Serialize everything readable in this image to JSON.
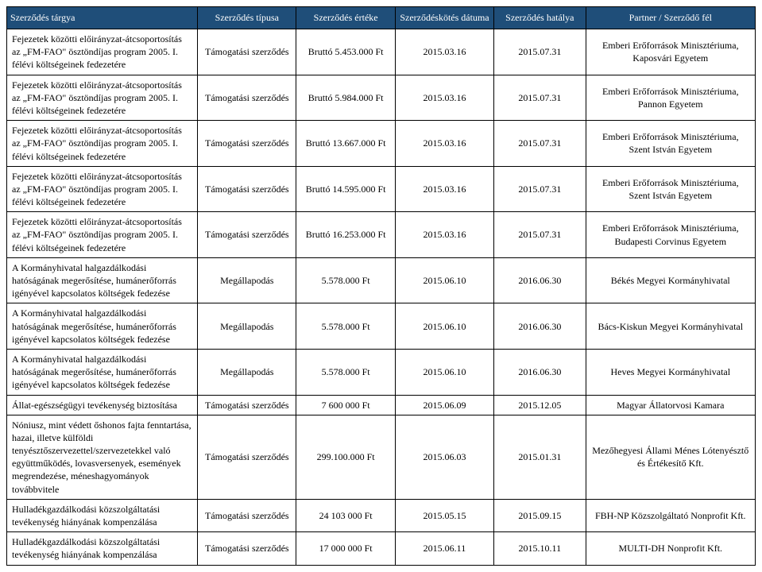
{
  "table": {
    "headers": {
      "subject": "Szerződés tárgya",
      "type": "Szerződés típusa",
      "value": "Szerződés értéke",
      "date": "Szerződéskötés dátuma",
      "expiry": "Szerződés hatálya",
      "partner": "Partner / Szerződő fél"
    },
    "rows": [
      {
        "subject": "Fejezetek közötti előirányzat-átcsoportosítás az „FM-FAO\" ösztöndíjas program 2005. I. félévi költségeinek fedezetére",
        "type": "Támogatási szerződés",
        "value": "Bruttó 5.453.000 Ft",
        "date": "2015.03.16",
        "expiry": "2015.07.31",
        "partner": "Emberi Erőforrások Minisztériuma, Kaposvári Egyetem"
      },
      {
        "subject": "Fejezetek közötti előirányzat-átcsoportosítás az „FM-FAO\" ösztöndíjas program 2005. I. félévi költségeinek fedezetére",
        "type": "Támogatási szerződés",
        "value": "Bruttó 5.984.000 Ft",
        "date": "2015.03.16",
        "expiry": "2015.07.31",
        "partner": "Emberi Erőforrások Minisztériuma, Pannon Egyetem"
      },
      {
        "subject": "Fejezetek közötti előirányzat-átcsoportosítás az „FM-FAO\" ösztöndíjas program 2005. I. félévi költségeinek fedezetére",
        "type": "Támogatási szerződés",
        "value": "Bruttó 13.667.000 Ft",
        "date": "2015.03.16",
        "expiry": "2015.07.31",
        "partner": "Emberi Erőforrások Minisztériuma, Szent István Egyetem"
      },
      {
        "subject": "Fejezetek közötti előirányzat-átcsoportosítás az „FM-FAO\" ösztöndíjas program 2005. I. félévi költségeinek fedezetére",
        "type": "Támogatási szerződés",
        "value": "Bruttó 14.595.000 Ft",
        "date": "2015.03.16",
        "expiry": "2015.07.31",
        "partner": "Emberi Erőforrások Minisztériuma, Szent István Egyetem"
      },
      {
        "subject": "Fejezetek közötti előirányzat-átcsoportosítás az „FM-FAO\" ösztöndíjas program 2005. I. félévi költségeinek fedezetére",
        "type": "Támogatási szerződés",
        "value": "Bruttó 16.253.000 Ft",
        "date": "2015.03.16",
        "expiry": "2015.07.31",
        "partner": "Emberi Erőforrások Minisztériuma, Budapesti Corvinus Egyetem"
      },
      {
        "subject": "A Kormányhivatal halgazdálkodási hatóságának megerősítése, humánerőforrás igényével kapcsolatos költségek fedezése",
        "type": "Megállapodás",
        "value": "5.578.000 Ft",
        "date": "2015.06.10",
        "expiry": "2016.06.30",
        "partner": "Békés Megyei Kormányhivatal"
      },
      {
        "subject": "A Kormányhivatal halgazdálkodási hatóságának megerősítése, humánerőforrás igényével kapcsolatos költségek fedezése",
        "type": "Megállapodás",
        "value": "5.578.000 Ft",
        "date": "2015.06.10",
        "expiry": "2016.06.30",
        "partner": "Bács-Kiskun Megyei Kormányhivatal"
      },
      {
        "subject": "A Kormányhivatal halgazdálkodási hatóságának megerősítése, humánerőforrás igényével kapcsolatos költségek fedezése",
        "type": "Megállapodás",
        "value": "5.578.000 Ft",
        "date": "2015.06.10",
        "expiry": "2016.06.30",
        "partner": "Heves Megyei Kormányhivatal"
      },
      {
        "subject": "Állat-egészségügyi tevékenység biztosítása",
        "type": "Támogatási szerződés",
        "value": "7 600 000 Ft",
        "date": "2015.06.09",
        "expiry": "2015.12.05",
        "partner": "Magyar Állatorvosi Kamara"
      },
      {
        "subject": "Nóniusz, mint védett őshonos fajta fenntartása, hazai, illetve külföldi tenyésztőszervezettel/szervezetekkel való együttműködés, lovasversenyek, események megrendezése, méneshagyományok továbbvitele",
        "type": "Támogatási szerződés",
        "value": "299.100.000 Ft",
        "date": "2015.06.03",
        "expiry": "2015.01.31",
        "partner": "Mezőhegyesi Állami Ménes Lótenyésztő és Értékesítő Kft."
      },
      {
        "subject": "Hulladékgazdálkodási közszolgáltatási tevékenység hiányának kompenzálása",
        "type": "Támogatási szerződés",
        "value": "24 103 000 Ft",
        "date": "2015.05.15",
        "expiry": "2015.09.15",
        "partner": "FBH-NP Közszolgáltató Nonprofit Kft."
      },
      {
        "subject": "Hulladékgazdálkodási közszolgáltatási tevékenység hiányának kompenzálása",
        "type": "Támogatási szerződés",
        "value": "17 000 000 Ft",
        "date": "2015.06.11",
        "expiry": "2015.10.11",
        "partner": "MULTI-DH Nonprofit Kft."
      }
    ]
  }
}
